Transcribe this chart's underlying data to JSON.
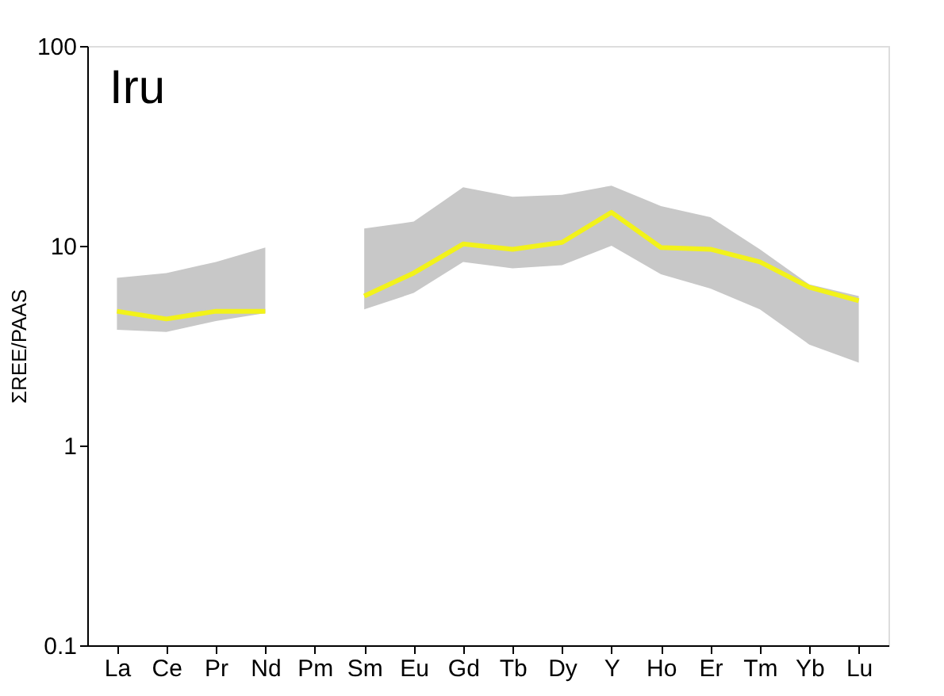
{
  "chart_data": {
    "type": "line",
    "title": "Iru",
    "ylabel": "ΣREE/PAAS",
    "categories": [
      "La",
      "Ce",
      "Pr",
      "Nd",
      "Pm",
      "Sm",
      "Eu",
      "Gd",
      "Tb",
      "Dy",
      "Y",
      "Ho",
      "Er",
      "Tm",
      "Yb",
      "Lu"
    ],
    "series": [
      {
        "color": "#f2f21a",
        "values": [
          4.7,
          4.3,
          4.7,
          4.7,
          null,
          5.6,
          7.3,
          10.2,
          9.6,
          10.4,
          14.7,
          9.8,
          9.6,
          8.3,
          6.2,
          5.3
        ],
        "lower": [
          3.8,
          3.7,
          4.2,
          4.6,
          null,
          4.8,
          5.8,
          8.3,
          7.7,
          8.0,
          10,
          7.2,
          6.1,
          4.8,
          3.2,
          2.6
        ],
        "upper": [
          6.9,
          7.3,
          8.3,
          9.8,
          null,
          12.2,
          13.2,
          19.6,
          17.6,
          18,
          20,
          15.8,
          13.9,
          9.6,
          6.4,
          5.6
        ]
      }
    ],
    "log": true,
    "ylim": [
      0.1,
      100
    ],
    "yticks": [
      0.1,
      1,
      10,
      100
    ],
    "grid": false,
    "marker": "none",
    "line_style": "solid"
  }
}
